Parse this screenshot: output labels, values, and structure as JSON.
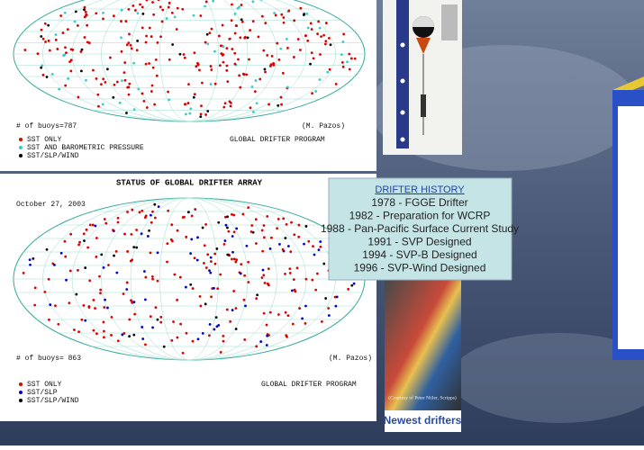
{
  "map_1": {
    "buoy_count": "# of buoys=787",
    "author": "(M. Pazos)",
    "legend": [
      "SST ONLY",
      "SST AND BAROMETRIC PRESSURE",
      "SST/SLP/WIND"
    ],
    "program": "GLOBAL DRIFTER PROGRAM"
  },
  "map_2": {
    "title": "STATUS OF GLOBAL DRIFTER ARRAY",
    "date": "October 27, 2003",
    "buoy_count": "# of buoys= 863",
    "author": "(M. Pazos)",
    "legend": [
      "SST ONLY",
      "SST/SLP",
      "SST/SLP/WIND"
    ],
    "program": "GLOBAL DRIFTER PROGRAM"
  },
  "history": {
    "title": "DRIFTER HISTORY",
    "items": [
      "1978 - FGGE Drifter",
      "1982 - Preparation for WCRP",
      "1988 - Pan-Pacific Surface Current Study",
      "1991 - SVP Designed",
      "1994 - SVP-B Designed",
      "1996 - SVP-Wind Designed"
    ]
  },
  "photo_credit": "(Courtesy of Peter Niiler, Scripps)",
  "photo_caption": "Newest drifters"
}
